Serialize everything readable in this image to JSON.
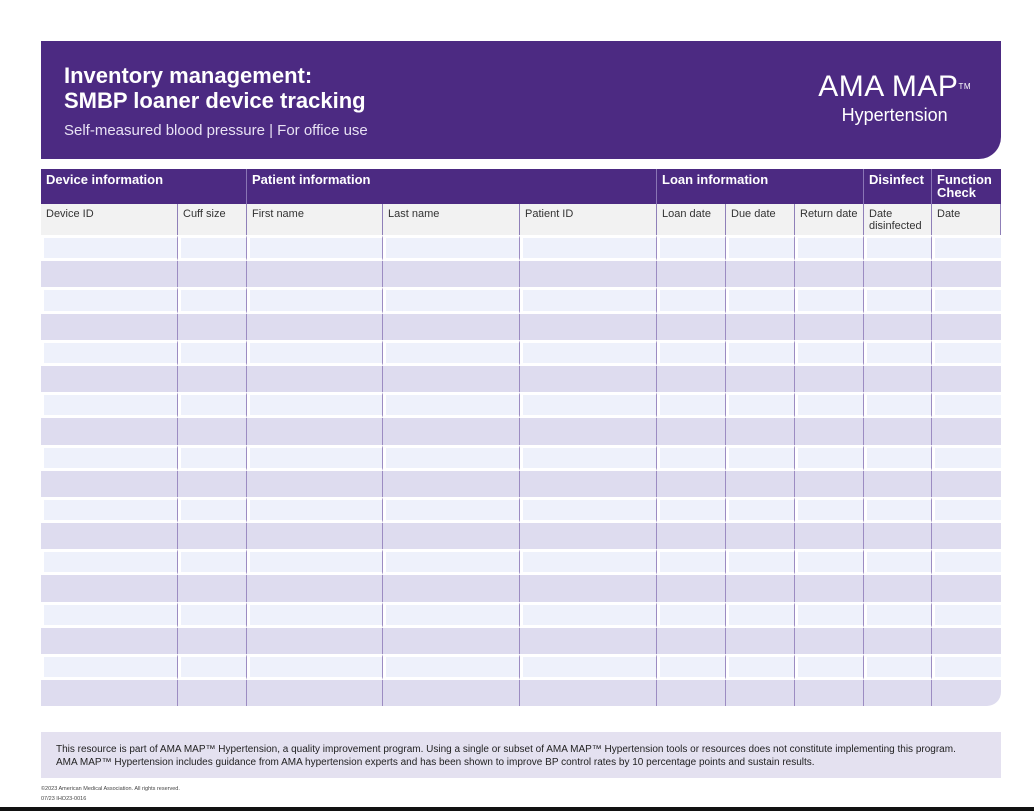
{
  "header": {
    "title_line1": "Inventory management:",
    "title_line2": "SMBP loaner device tracking",
    "subtitle": "Self-measured blood pressure | For office use",
    "logo_text": "AMA MAP",
    "logo_tm": "TM",
    "logo_sub": "Hypertension"
  },
  "table": {
    "groups": [
      "Device information",
      "",
      "Patient information",
      "",
      "",
      "Loan information",
      "",
      "",
      "Disinfect",
      "Function Check"
    ],
    "columns": [
      "Device ID",
      "Cuff size",
      "First name",
      "Last name",
      "Patient ID",
      "Loan date",
      "Due date",
      "Return date",
      "Date disinfected",
      "Date"
    ],
    "row_count": 18
  },
  "colors": {
    "brand": "#4c2a82",
    "row_light": "#eef1fb",
    "row_dark": "#dedcef"
  },
  "footer": {
    "line1": "This resource is part of AMA MAP™ Hypertension, a quality improvement program. Using a single or subset of AMA MAP™ Hypertension tools or resources does not constitute implementing this program.",
    "line2": "AMA MAP™ Hypertension includes guidance from AMA hypertension experts and has been shown to improve BP control rates by 10 percentage points and sustain results.",
    "copyright": "©2023 American Medical Association. All rights reserved.",
    "code": "07/23 IHO23-0016"
  }
}
